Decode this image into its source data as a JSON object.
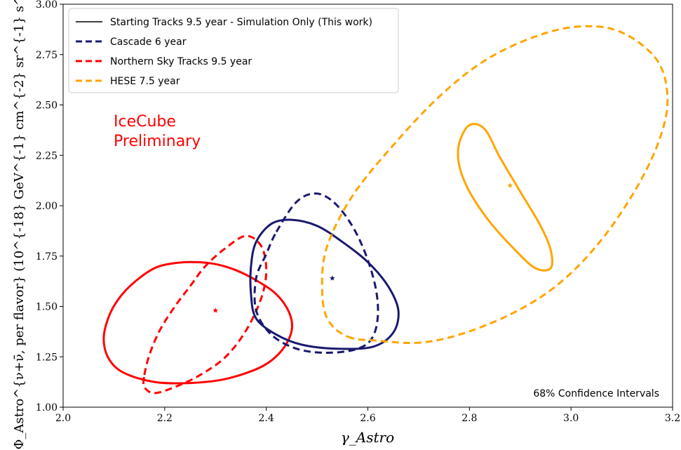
{
  "chart_data": {
    "type": "line",
    "xlabel": "γ_Astro",
    "ylabel": "Φ_Astro^{ν+ν̄, per flavor} (10^{-18} GeV^{-1} cm^{-2} sr^{-1} s^{-1})",
    "xlim": [
      2.0,
      3.2
    ],
    "ylim": [
      1.0,
      3.0
    ],
    "x_ticks": [
      2.0,
      2.2,
      2.4,
      2.6,
      2.8,
      3.0,
      3.2
    ],
    "x_tick_labels": [
      "2.0",
      "2.2",
      "2.4",
      "2.6",
      "2.8",
      "3.0",
      "3.2"
    ],
    "y_ticks": [
      1.0,
      1.25,
      1.5,
      1.75,
      2.0,
      2.25,
      2.5,
      2.75,
      3.0
    ],
    "y_tick_labels": [
      "1.00",
      "1.25",
      "1.50",
      "1.75",
      "2.00",
      "2.25",
      "2.50",
      "2.75",
      "3.00"
    ],
    "grid": false,
    "legend_position": "top-left",
    "legend": [
      {
        "label": "Starting Tracks 9.5 year - Simulation Only (This work)",
        "color": "#000000",
        "dash": "solid"
      },
      {
        "label": "Cascade 6 year",
        "color": "#191970",
        "dash": "dashed"
      },
      {
        "label": "Northern Sky Tracks 9.5 year",
        "color": "#ff0000",
        "dash": "dashed"
      },
      {
        "label": "HESE 7.5 year",
        "color": "#ffa500",
        "dash": "dashed"
      }
    ],
    "annotations": [
      {
        "text": "IceCube",
        "color": "#ff0000"
      },
      {
        "text": "Preliminary",
        "color": "#ff0000"
      },
      {
        "text": "68% Confidence Intervals",
        "color": "#000000"
      }
    ],
    "series": [
      {
        "color": "#ff0000",
        "dash": "solid",
        "best_fit": [
          2.3,
          1.48
        ],
        "contour": [
          [
            2.08,
            1.34
          ],
          [
            2.09,
            1.45
          ],
          [
            2.11,
            1.54
          ],
          [
            2.14,
            1.62
          ],
          [
            2.18,
            1.69
          ],
          [
            2.22,
            1.715
          ],
          [
            2.26,
            1.72
          ],
          [
            2.3,
            1.71
          ],
          [
            2.34,
            1.68
          ],
          [
            2.38,
            1.63
          ],
          [
            2.42,
            1.56
          ],
          [
            2.445,
            1.47
          ],
          [
            2.45,
            1.38
          ],
          [
            2.43,
            1.28
          ],
          [
            2.39,
            1.2
          ],
          [
            2.32,
            1.14
          ],
          [
            2.25,
            1.12
          ],
          [
            2.18,
            1.125
          ],
          [
            2.12,
            1.17
          ],
          [
            2.09,
            1.24
          ],
          [
            2.08,
            1.34
          ]
        ]
      },
      {
        "color": "#ff0000",
        "dash": "dashed",
        "best_fit": [
          2.3,
          1.48
        ],
        "contour": [
          [
            2.16,
            1.16
          ],
          [
            2.17,
            1.26
          ],
          [
            2.19,
            1.38
          ],
          [
            2.22,
            1.5
          ],
          [
            2.25,
            1.6
          ],
          [
            2.28,
            1.7
          ],
          [
            2.32,
            1.79
          ],
          [
            2.36,
            1.85
          ],
          [
            2.39,
            1.8
          ],
          [
            2.4,
            1.68
          ],
          [
            2.39,
            1.54
          ],
          [
            2.36,
            1.38
          ],
          [
            2.32,
            1.25
          ],
          [
            2.27,
            1.16
          ],
          [
            2.22,
            1.1
          ],
          [
            2.18,
            1.07
          ],
          [
            2.16,
            1.1
          ],
          [
            2.16,
            1.16
          ]
        ]
      },
      {
        "color": "#191970",
        "dash": "solid",
        "best_fit": [
          2.53,
          1.64
        ],
        "contour": [
          [
            2.38,
            1.82
          ],
          [
            2.41,
            1.91
          ],
          [
            2.45,
            1.93
          ],
          [
            2.5,
            1.9
          ],
          [
            2.55,
            1.82
          ],
          [
            2.6,
            1.72
          ],
          [
            2.64,
            1.6
          ],
          [
            2.66,
            1.48
          ],
          [
            2.65,
            1.37
          ],
          [
            2.61,
            1.3
          ],
          [
            2.54,
            1.29
          ],
          [
            2.47,
            1.31
          ],
          [
            2.42,
            1.36
          ],
          [
            2.38,
            1.44
          ],
          [
            2.37,
            1.56
          ],
          [
            2.37,
            1.7
          ],
          [
            2.38,
            1.82
          ]
        ]
      },
      {
        "color": "#191970",
        "dash": "dashed",
        "best_fit": [
          2.53,
          1.64
        ],
        "contour": [
          [
            2.42,
            1.87
          ],
          [
            2.46,
            2.02
          ],
          [
            2.5,
            2.06
          ],
          [
            2.54,
            2.0
          ],
          [
            2.58,
            1.85
          ],
          [
            2.61,
            1.65
          ],
          [
            2.62,
            1.48
          ],
          [
            2.61,
            1.35
          ],
          [
            2.58,
            1.29
          ],
          [
            2.52,
            1.27
          ],
          [
            2.46,
            1.29
          ],
          [
            2.41,
            1.36
          ],
          [
            2.38,
            1.48
          ],
          [
            2.38,
            1.64
          ],
          [
            2.4,
            1.76
          ],
          [
            2.42,
            1.87
          ]
        ]
      },
      {
        "color": "#ffa500",
        "dash": "solid",
        "best_fit": [
          2.88,
          2.1
        ],
        "contour": [
          [
            2.78,
            2.31
          ],
          [
            2.8,
            2.4
          ],
          [
            2.83,
            2.38
          ],
          [
            2.86,
            2.24
          ],
          [
            2.9,
            2.07
          ],
          [
            2.94,
            1.9
          ],
          [
            2.96,
            1.78
          ],
          [
            2.96,
            1.69
          ],
          [
            2.93,
            1.69
          ],
          [
            2.89,
            1.78
          ],
          [
            2.84,
            1.92
          ],
          [
            2.8,
            2.07
          ],
          [
            2.78,
            2.2
          ],
          [
            2.78,
            2.31
          ]
        ]
      },
      {
        "color": "#ffa500",
        "dash": "dashed",
        "best_fit": [
          2.88,
          2.1
        ],
        "contour": [
          [
            2.56,
            1.35
          ],
          [
            2.62,
            1.33
          ],
          [
            2.7,
            1.32
          ],
          [
            2.78,
            1.36
          ],
          [
            2.88,
            1.46
          ],
          [
            2.97,
            1.6
          ],
          [
            3.05,
            1.8
          ],
          [
            3.12,
            2.05
          ],
          [
            3.17,
            2.3
          ],
          [
            3.19,
            2.52
          ],
          [
            3.17,
            2.72
          ],
          [
            3.1,
            2.86
          ],
          [
            3.02,
            2.89
          ],
          [
            2.93,
            2.84
          ],
          [
            2.83,
            2.72
          ],
          [
            2.74,
            2.54
          ],
          [
            2.65,
            2.3
          ],
          [
            2.57,
            2.05
          ],
          [
            2.52,
            1.8
          ],
          [
            2.51,
            1.6
          ],
          [
            2.52,
            1.44
          ],
          [
            2.56,
            1.35
          ]
        ]
      }
    ]
  }
}
